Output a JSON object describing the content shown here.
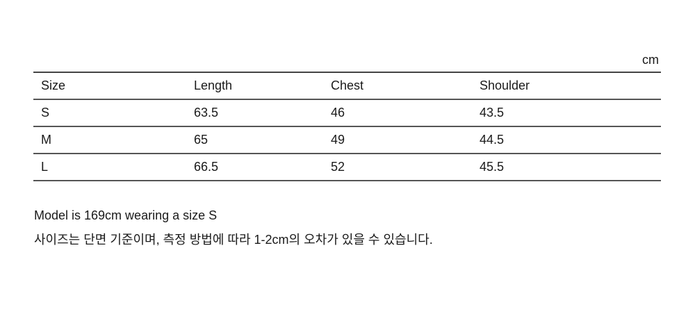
{
  "unit": "cm",
  "table": {
    "headers": [
      "Size",
      "Length",
      "Chest",
      "Shoulder"
    ],
    "rows": [
      [
        "S",
        "63.5",
        "46",
        "43.5"
      ],
      [
        "M",
        "65",
        "49",
        "44.5"
      ],
      [
        "L",
        "66.5",
        "52",
        "45.5"
      ]
    ]
  },
  "notes": {
    "model": "Model is 169cm wearing a size S",
    "disclaimer": "사이즈는 단면 기준이며, 측정 방법에 따라 1-2cm의 오차가 있을 수 있습니다."
  }
}
